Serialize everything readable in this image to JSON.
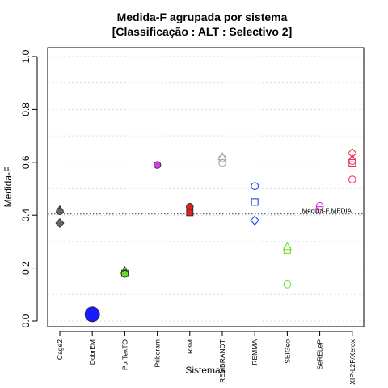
{
  "chart_data": {
    "type": "scatter",
    "title_lines": [
      "Medida-F agrupada por sistema",
      "[Classificação : ALT : Selectivo 2]"
    ],
    "xlabel": "Sistemas",
    "ylabel": "Medida-F",
    "ylim": [
      0,
      1
    ],
    "yticks": [
      0.0,
      0.2,
      0.4,
      0.6,
      0.8,
      1.0
    ],
    "ytick_labels": [
      "0.0",
      "0.2",
      "0.4",
      "0.6",
      "0.8",
      "1.0"
    ],
    "grid": "horizontal dotted",
    "categories": [
      "Cage2",
      "DobrEM",
      "PorTexTO",
      "Priberam",
      "R3M",
      "REMBRANDT",
      "REMMA",
      "SEIGeo",
      "SeRELeP",
      "XIP-L2F/Xerox"
    ],
    "reference_line": {
      "value": 0.405,
      "label": "Medida-F MÉDIA"
    },
    "series": [
      {
        "category": "Cage2",
        "color": "#666666",
        "filled": true,
        "points": [
          {
            "y": 0.42,
            "shape": "triangle"
          },
          {
            "y": 0.415,
            "shape": "circle"
          },
          {
            "y": 0.37,
            "shape": "diamond"
          }
        ]
      },
      {
        "category": "DobrEM",
        "color": "#1a1aff",
        "filled": true,
        "points": [
          {
            "y": 0.025,
            "shape": "circle",
            "large": true
          }
        ]
      },
      {
        "category": "PorTexTO",
        "color": "#66dd22",
        "filled": true,
        "points": [
          {
            "y": 0.19,
            "shape": "triangle"
          },
          {
            "y": 0.18,
            "shape": "square"
          },
          {
            "y": 0.178,
            "shape": "circle"
          }
        ]
      },
      {
        "category": "Priberam",
        "color": "#cc44dd",
        "filled": true,
        "points": [
          {
            "y": 0.59,
            "shape": "circle"
          }
        ]
      },
      {
        "category": "R3M",
        "color": "#dd2222",
        "filled": true,
        "points": [
          {
            "y": 0.432,
            "shape": "circle"
          },
          {
            "y": 0.41,
            "shape": "square"
          }
        ]
      },
      {
        "category": "REMBRANDT",
        "color": "#aaaaaa",
        "filled": false,
        "points": [
          {
            "y": 0.62,
            "shape": "triangle"
          },
          {
            "y": 0.615,
            "shape": "circle"
          },
          {
            "y": 0.598,
            "shape": "circle"
          }
        ]
      },
      {
        "category": "REMMA",
        "color": "#2244ee",
        "filled": false,
        "points": [
          {
            "y": 0.51,
            "shape": "circle"
          },
          {
            "y": 0.45,
            "shape": "square"
          },
          {
            "y": 0.38,
            "shape": "diamond"
          }
        ]
      },
      {
        "category": "SEIGeo",
        "color": "#77dd33",
        "filled": false,
        "points": [
          {
            "y": 0.28,
            "shape": "triangle"
          },
          {
            "y": 0.268,
            "shape": "square"
          },
          {
            "y": 0.138,
            "shape": "circle"
          }
        ]
      },
      {
        "category": "SeRELeP",
        "color": "#dd33dd",
        "filled": false,
        "points": [
          {
            "y": 0.435,
            "shape": "circle"
          },
          {
            "y": 0.42,
            "shape": "square"
          }
        ]
      },
      {
        "category": "XIP-L2F/Xerox",
        "color": "#ee3355",
        "filled": false,
        "points": [
          {
            "y": 0.635,
            "shape": "diamond"
          },
          {
            "y": 0.612,
            "shape": "triangle"
          },
          {
            "y": 0.605,
            "shape": "circle"
          },
          {
            "y": 0.598,
            "shape": "square"
          },
          {
            "y": 0.535,
            "shape": "circle"
          }
        ]
      }
    ]
  }
}
